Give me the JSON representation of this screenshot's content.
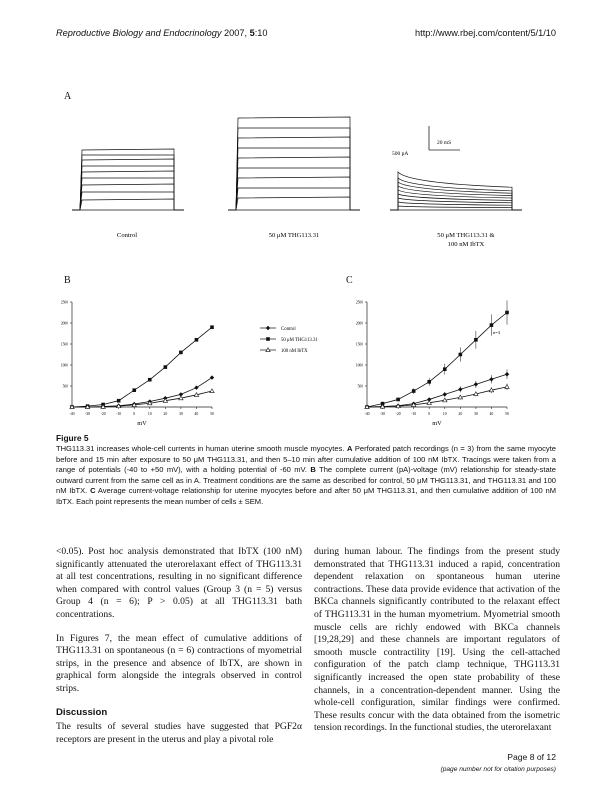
{
  "header": {
    "journal": "Reproductive Biology and Endocrinology",
    "year_volume": "2007, ",
    "volume_bold": "5",
    "issue": ":10",
    "url": "http://www.rbej.com/content/5/1/10"
  },
  "figure": {
    "panel_a": {
      "letter": "A",
      "labels": [
        "Control",
        "50 μM THG113.31",
        "50 μM THG113.31 &",
        "100 nM IbTX"
      ],
      "scale_current": "500 pA",
      "scale_time": "20 mS"
    },
    "panel_b": {
      "letter": "B",
      "chart_data": {
        "type": "line",
        "xlabel": "mV",
        "ylabel": "Current (pA)",
        "x": [
          -40,
          -30,
          -20,
          -10,
          0,
          10,
          20,
          30,
          40,
          50
        ],
        "ylim": [
          0,
          2500
        ],
        "yticks": [
          500,
          1000,
          1500,
          2000,
          2500
        ],
        "series": [
          {
            "name": "Control",
            "values": [
              0,
              0,
              10,
              30,
              70,
              130,
              210,
              300,
              460,
              700
            ]
          },
          {
            "name": "50 μM THG113.31",
            "values": [
              0,
              20,
              60,
              150,
              400,
              650,
              950,
              1300,
              1600,
              1900
            ]
          },
          {
            "name": "100 nM IbTX",
            "values": [
              0,
              0,
              5,
              20,
              50,
              90,
              150,
              210,
              290,
              380
            ]
          }
        ]
      }
    },
    "panel_c": {
      "letter": "C",
      "annotation": "n=3",
      "chart_data": {
        "type": "line",
        "xlabel": "mV",
        "ylabel": "Current (pA)",
        "x": [
          -40,
          -30,
          -20,
          -10,
          0,
          10,
          20,
          30,
          40,
          50
        ],
        "ylim": [
          0,
          2500
        ],
        "yticks": [
          500,
          1000,
          1500,
          2000,
          2500
        ],
        "series": [
          {
            "values": [
              0,
              10,
              30,
              80,
              180,
              300,
              420,
              540,
              660,
              780
            ]
          },
          {
            "values": [
              0,
              80,
              180,
              380,
              600,
              900,
              1250,
              1600,
              1950,
              2250
            ]
          },
          {
            "values": [
              0,
              10,
              20,
              50,
              100,
              160,
              230,
              310,
              400,
              480
            ]
          }
        ]
      }
    },
    "title": "Figure 5",
    "caption": [
      {
        "t": "THG113.31 increases whole-cell currents in human uterine smooth muscle myocytes. ",
        "b": false
      },
      {
        "t": "A",
        "b": true
      },
      {
        "t": " Perforated patch recordings (n = 3) from the same myocyte before and 15 min after exposure to 50 μM THG113.31, and then 5–10 min after cumulative addition of 100 nM IbTX. Tracings were taken from a range of potentials (-40 to +50 mV), with a holding potential of -60 mV. ",
        "b": false
      },
      {
        "t": "B",
        "b": true
      },
      {
        "t": " The complete current (pA)-voltage (mV) relationship for steady-state outward current from the same cell as in A. Treatment conditions are the same as described for control, 50 μM THG113.31, and THG113.31 and 100 nM IbTX. ",
        "b": false
      },
      {
        "t": "C",
        "b": true
      },
      {
        "t": " Average current-voltage relationship for uterine myocytes before and after 50 μM THG113.31, and then cumulative addition of 100 nM IbTX. Each point represents the mean number of cells ± SEM.",
        "b": false
      }
    ]
  },
  "body": {
    "left_p1": "<0.05). Post hoc analysis demonstrated that IbTX (100 nM) significantly attenuated the uterorelaxant effect of THG113.31 at all test concentrations, resulting in no significant difference when compared with control values (Group 3 (n = 5) versus Group 4 (n = 6); P > 0.05) at all THG113.31 bath concentrations.",
    "left_p2": "In Figures 7, the mean effect of cumulative additions of THG113.31 on spontaneous (n = 6) contractions of myometrial strips, in the presence and absence of IbTX, are shown in graphical form alongside the integrals observed in control strips.",
    "discussion_heading": "Discussion",
    "left_p3": "The results of several studies have suggested that PGF2α receptors are present in the uterus and play a pivotal role",
    "right_p1": "during human labour. The findings from the present study demonstrated that THG113.31 induced a rapid, concentration dependent relaxation on spontaneous human uterine contractions. These data provide evidence that activation of the BKCa channels significantly contributed to the relaxant effect of THG113.31 in the human myometrium. Myometrial smooth muscle cells are richly endowed with BKCa channels [19,28,29] and these channels are important regulators of smooth muscle contractility [19]. Using the cell-attached configuration of the patch clamp technique, THG113.31 significantly increased the open state probability of these channels, in a concentration-dependent manner. Using the whole-cell configuration, similar findings were confirmed. These results concur with the data obtained from the isometric tension recordings. In the functional studies, the uterorelaxant"
  },
  "footer": {
    "page": "Page 8 of 12",
    "note": "(page number not for citation purposes)"
  }
}
